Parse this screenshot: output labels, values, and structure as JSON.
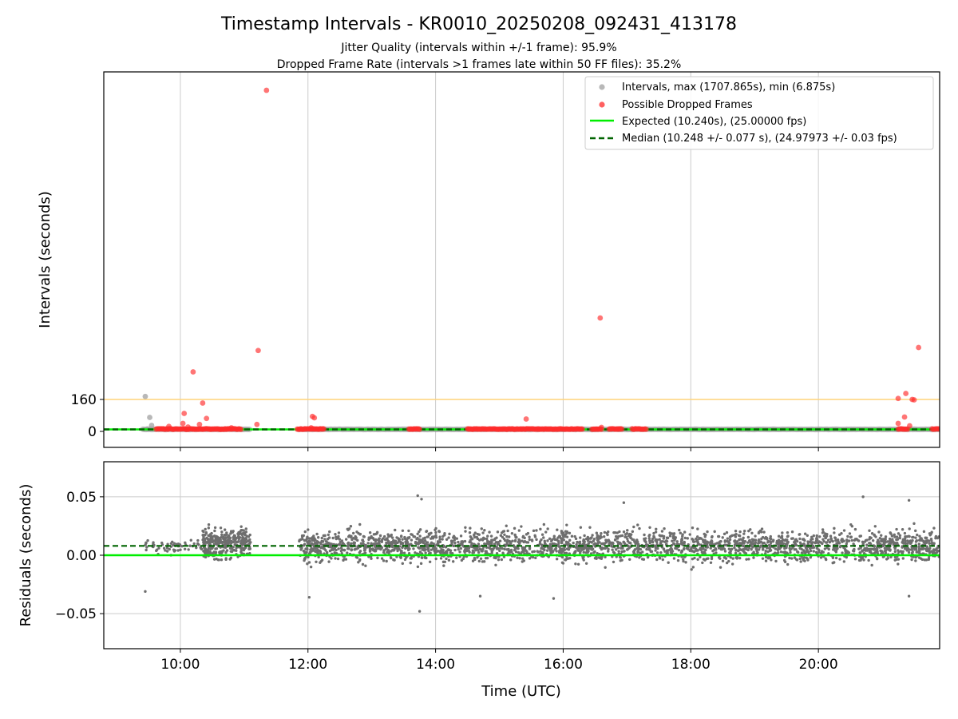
{
  "figure": {
    "title": "Timestamp Intervals - KR0010_20250208_092431_413178",
    "subtitle_1": "Jitter Quality (intervals within +/-1 frame): 95.9%",
    "subtitle_2": "Dropped Frame Rate (intervals >1 frames late within 50 FF files): 35.2%"
  },
  "colors": {
    "intervals": "#a0a0a0",
    "dropped": "#ff2b2b",
    "expected": "#00ee00",
    "median": "#006400",
    "threshold": "#ffd37a",
    "grid": "#cccccc",
    "residuals": "#6e6e6e"
  },
  "chart_data": [
    {
      "type": "scatter",
      "panel": "top",
      "xlabel": "",
      "ylabel": "Intervals (seconds)",
      "x_unit": "hours UTC",
      "xlim": [
        8.8,
        21.9
      ],
      "ylim": [
        -80,
        1800
      ],
      "yticks": [
        0,
        160
      ],
      "ytick_labels": [
        "0",
        "160"
      ],
      "threshold_line": 160,
      "expected_value": 10.24,
      "median_value": 10.248,
      "grid": "vertical",
      "legend_position": "top-right",
      "legend": [
        {
          "label": "Intervals, max (1707.865s), min (6.875s)",
          "style": "marker",
          "color": "#a0a0a0"
        },
        {
          "label": "Possible Dropped Frames",
          "style": "marker",
          "color": "#ff2b2b"
        },
        {
          "label": "Expected (10.240s), (25.00000 fps)",
          "style": "solid",
          "color": "#00ee00"
        },
        {
          "label": "Median (10.248 +/- 0.077 s), (24.97973 +/- 0.03 fps)",
          "style": "dashed",
          "color": "#006400"
        }
      ],
      "normal_intervals": {
        "segments": [
          [
            9.4,
            11.1
          ],
          [
            11.85,
            21.9
          ]
        ],
        "value": 10.25,
        "outliers": [
          {
            "x": 9.45,
            "y": 175
          },
          {
            "x": 9.52,
            "y": 70
          },
          {
            "x": 9.55,
            "y": 30
          },
          {
            "x": 9.48,
            "y": 12
          }
        ]
      },
      "dropped_frames": {
        "baseline_clusters": [
          [
            9.62,
            10.95
          ],
          [
            11.83,
            12.25
          ],
          [
            13.58,
            13.75
          ],
          [
            14.5,
            16.3
          ],
          [
            16.45,
            16.6
          ],
          [
            16.72,
            16.92
          ],
          [
            17.08,
            17.3
          ],
          [
            21.25,
            21.4
          ],
          [
            21.78,
            21.9
          ]
        ],
        "baseline_value": 10.3,
        "points": [
          {
            "x": 11.35,
            "y": 1707.865
          },
          {
            "x": 16.58,
            "y": 568
          },
          {
            "x": 21.57,
            "y": 420
          },
          {
            "x": 11.22,
            "y": 405
          },
          {
            "x": 10.2,
            "y": 298
          },
          {
            "x": 21.37,
            "y": 190
          },
          {
            "x": 21.25,
            "y": 165
          },
          {
            "x": 21.47,
            "y": 160
          },
          {
            "x": 21.5,
            "y": 158
          },
          {
            "x": 10.35,
            "y": 142
          },
          {
            "x": 12.07,
            "y": 75
          },
          {
            "x": 12.1,
            "y": 68
          },
          {
            "x": 10.41,
            "y": 65
          },
          {
            "x": 15.42,
            "y": 62
          },
          {
            "x": 21.35,
            "y": 72
          },
          {
            "x": 10.06,
            "y": 90
          },
          {
            "x": 10.04,
            "y": 40
          },
          {
            "x": 11.2,
            "y": 35
          },
          {
            "x": 10.3,
            "y": 35
          },
          {
            "x": 21.25,
            "y": 40
          },
          {
            "x": 9.82,
            "y": 25
          },
          {
            "x": 10.12,
            "y": 22
          },
          {
            "x": 16.6,
            "y": 20
          },
          {
            "x": 21.43,
            "y": 28
          },
          {
            "x": 10.8,
            "y": 18
          },
          {
            "x": 12.05,
            "y": 18
          }
        ]
      }
    },
    {
      "type": "scatter",
      "panel": "bottom",
      "xlabel": "Time (UTC)",
      "ylabel": "Residuals (seconds)",
      "x_unit": "hours UTC",
      "xlim": [
        8.8,
        21.9
      ],
      "ylim": [
        -0.08,
        0.08
      ],
      "yticks": [
        0.05,
        0.0,
        -0.05
      ],
      "ytick_labels": [
        "0.05",
        "0.00",
        "−0.05"
      ],
      "xticks": [
        10,
        12,
        14,
        16,
        18,
        20
      ],
      "xtick_labels": [
        "10:00",
        "12:00",
        "14:00",
        "16:00",
        "18:00",
        "20:00"
      ],
      "expected_value": 0.0,
      "median_value": 0.008,
      "grid": "both",
      "residual_segments": [
        {
          "start": 9.45,
          "end": 10.35,
          "center": 0.007,
          "spread": 0.012,
          "count": 60
        },
        {
          "start": 10.35,
          "end": 11.1,
          "center": 0.01,
          "spread": 0.022,
          "count": 320
        },
        {
          "start": 11.85,
          "end": 21.9,
          "center": 0.008,
          "spread": 0.024,
          "count": 2600
        }
      ],
      "residual_outliers": [
        {
          "x": 9.45,
          "y": -0.031
        },
        {
          "x": 13.75,
          "y": -0.048
        },
        {
          "x": 13.72,
          "y": 0.051
        },
        {
          "x": 13.78,
          "y": 0.048
        },
        {
          "x": 20.7,
          "y": 0.05
        },
        {
          "x": 21.42,
          "y": 0.047
        },
        {
          "x": 15.85,
          "y": -0.037
        },
        {
          "x": 12.02,
          "y": -0.036
        },
        {
          "x": 21.42,
          "y": -0.035
        },
        {
          "x": 14.7,
          "y": -0.035
        },
        {
          "x": 16.95,
          "y": 0.045
        }
      ]
    }
  ]
}
